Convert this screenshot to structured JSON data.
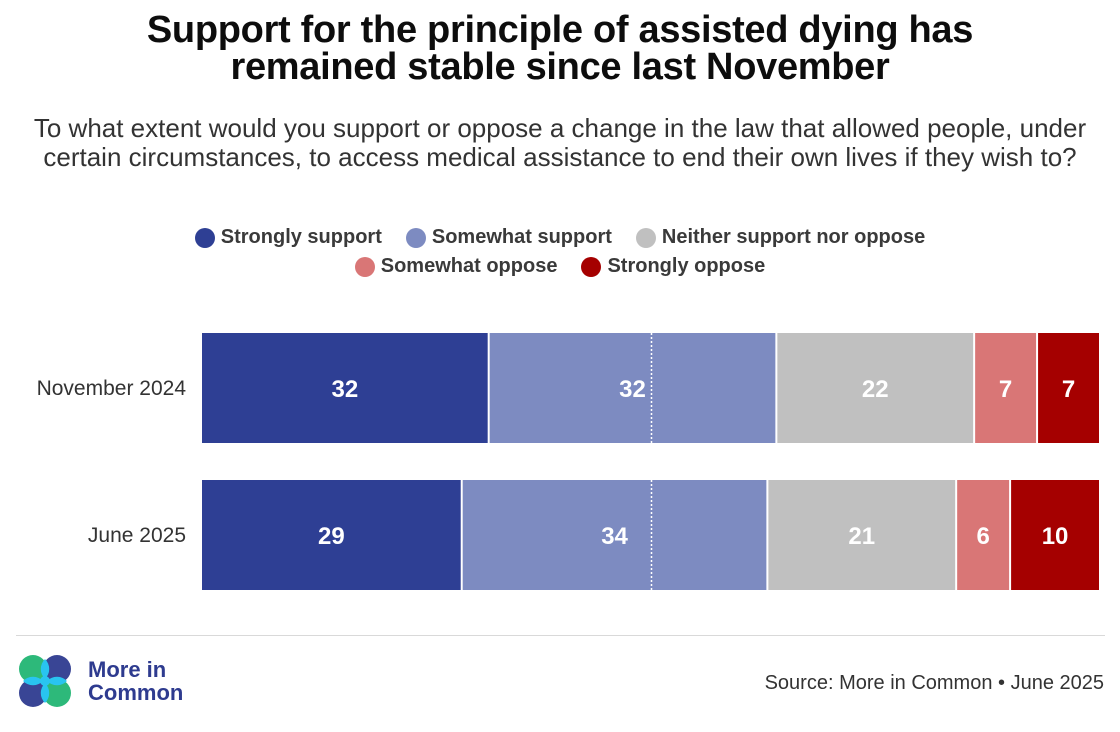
{
  "title_lines": [
    "Support for the principle of assisted dying has",
    "remained stable since last November"
  ],
  "subtitle": "To what extent would you support or oppose a change in the law that allowed people, under certain circumstances, to access medical assistance to end their own lives if they wish to?",
  "legend": [
    {
      "label": "Strongly support",
      "color": "#2e3f94"
    },
    {
      "label": "Somewhat support",
      "color": "#7d8bc1"
    },
    {
      "label": "Neither support nor oppose",
      "color": "#c0c0c0"
    },
    {
      "label": "Somewhat oppose",
      "color": "#d97676"
    },
    {
      "label": "Strongly oppose",
      "color": "#a50000"
    }
  ],
  "chart_data": {
    "type": "bar",
    "orientation": "horizontal-stacked-100",
    "title": "Support for the principle of assisted dying has remained stable since last November",
    "categories": [
      "November 2024",
      "June 2025"
    ],
    "series": [
      {
        "name": "Strongly support",
        "values": [
          32,
          29
        ],
        "color": "#2e3f94"
      },
      {
        "name": "Somewhat support",
        "values": [
          32,
          34
        ],
        "color": "#7d8bc1"
      },
      {
        "name": "Neither support nor oppose",
        "values": [
          22,
          21
        ],
        "color": "#c0c0c0"
      },
      {
        "name": "Somewhat oppose",
        "values": [
          7,
          6
        ],
        "color": "#d97676"
      },
      {
        "name": "Strongly oppose",
        "values": [
          7,
          10
        ],
        "color": "#a50000"
      }
    ],
    "xlabel": "",
    "ylabel": "",
    "xlim": [
      0,
      100
    ],
    "reference_line": 50,
    "legend_position": "top",
    "grid": false
  },
  "footer": {
    "logo_text_line1": "More in",
    "logo_text_line2": "Common",
    "source": "Source: More in Common • June 2025"
  }
}
